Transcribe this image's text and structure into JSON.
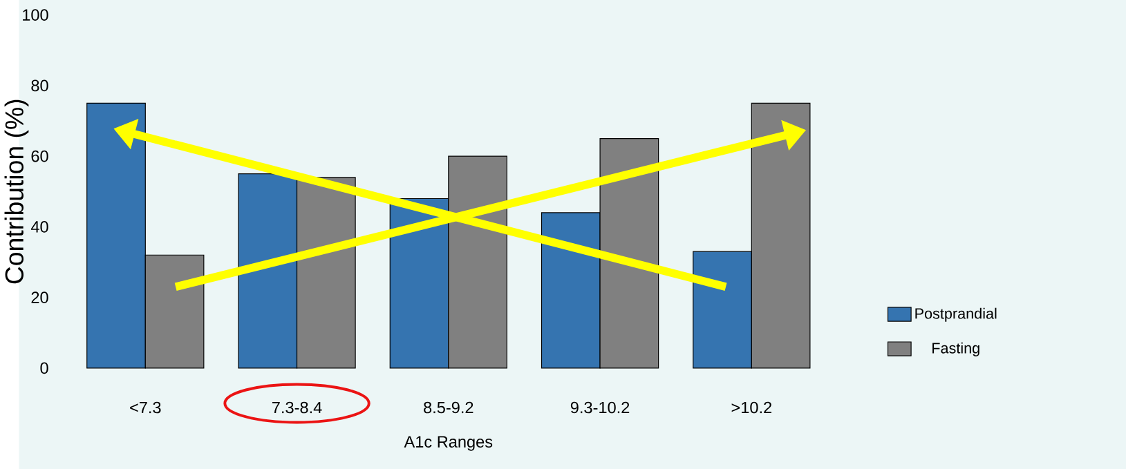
{
  "chart_data": {
    "type": "bar",
    "xlabel": "A1c Ranges",
    "ylabel": "Contribution (%)",
    "categories": [
      "<7.3",
      "7.3-8.4",
      "8.5-9.2",
      "9.3-10.2",
      ">10.2"
    ],
    "series": [
      {
        "name": "Postprandial",
        "color": "#3574b0",
        "values": [
          75,
          55,
          48,
          44,
          33
        ]
      },
      {
        "name": "Fasting",
        "color": "#808080",
        "values": [
          32,
          54,
          60,
          65,
          75
        ]
      }
    ],
    "ylim": [
      0,
      100
    ],
    "yticks": [
      0,
      20,
      40,
      60,
      80,
      100
    ],
    "grid": false,
    "legend": "right"
  }
}
